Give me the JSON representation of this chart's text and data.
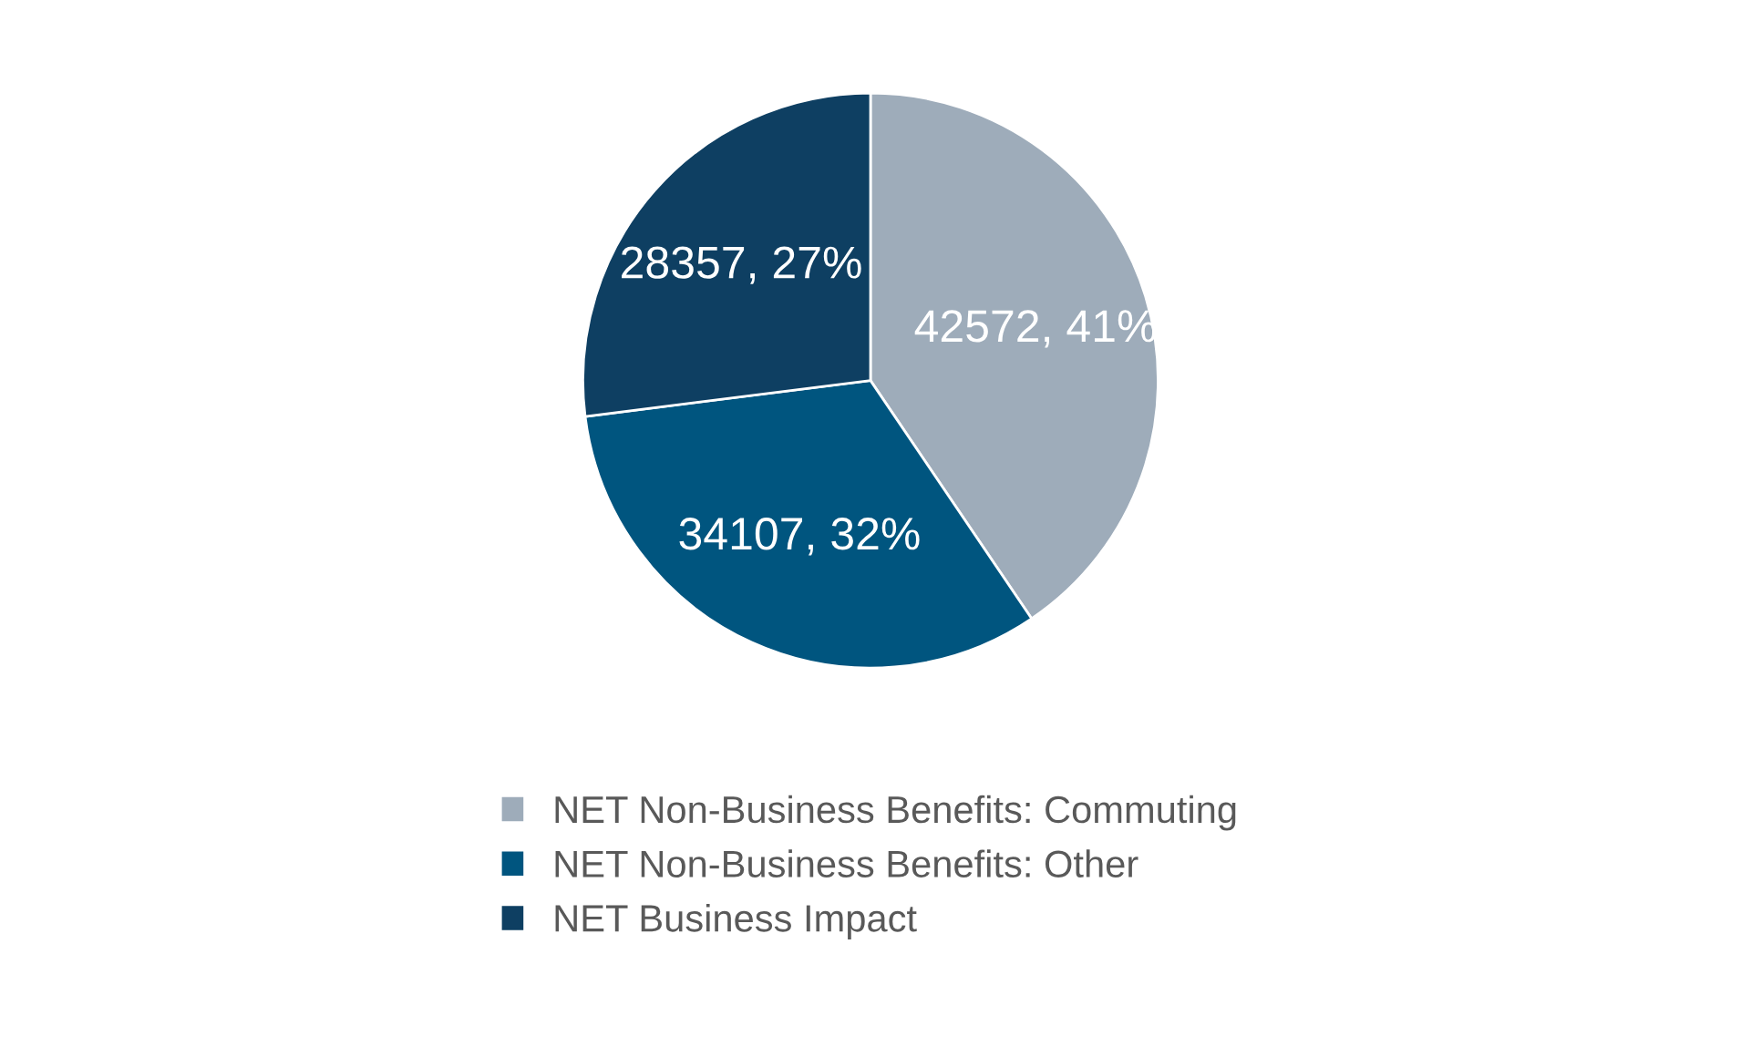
{
  "chart_data": {
    "type": "pie",
    "categories": [
      "NET Non-Business Benefits: Commuting",
      "NET Non-Business Benefits: Other",
      "NET Business Impact"
    ],
    "values": [
      42572,
      34107,
      28357
    ],
    "value_labels": [
      "42572, 41%",
      "34107, 32%",
      "28357, 27%"
    ],
    "colors": [
      "#9eacba",
      "#00557f",
      "#0e3f62"
    ],
    "legend": "bottom"
  }
}
